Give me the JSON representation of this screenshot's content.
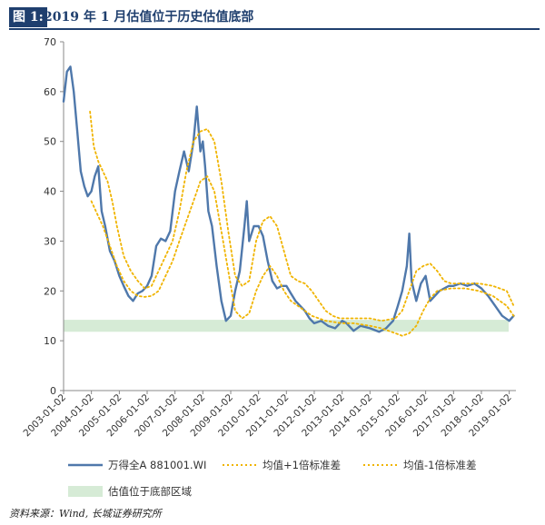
{
  "header": {
    "figure_label": "图 1:",
    "title": "2019 年 1 月估值位于历史估值底部"
  },
  "source": "资料来源：Wind, 长城证券研究所",
  "colors": {
    "series": "#4f78ab",
    "bands": "#f0b400",
    "zone": "#d6ebd6",
    "axis": "#888888",
    "title": "#1f3f6e"
  },
  "chart_data": {
    "type": "line",
    "title": "",
    "xlabel": "",
    "ylabel": "",
    "ylim": [
      0,
      70
    ],
    "y_ticks": [
      0,
      10,
      20,
      30,
      40,
      50,
      60,
      70
    ],
    "x_range": [
      "2003-01-02",
      "2019-03-31"
    ],
    "x_tick_labels": [
      "2003-01-02",
      "2004-01-02",
      "2005-01-02",
      "2006-01-02",
      "2007-01-02",
      "2008-01-02",
      "2009-01-02",
      "2010-01-02",
      "2011-01-02",
      "2012-01-02",
      "2013-01-02",
      "2014-01-02",
      "2015-01-02",
      "2016-01-02",
      "2017-01-02",
      "2018-01-02",
      "2019-01-02"
    ],
    "grid": false,
    "legend_position": "bottom",
    "bottom_zone": {
      "name": "估值位于底部区域",
      "y_range": [
        11.8,
        14.2
      ]
    },
    "series": [
      {
        "name": "万得全A 881001.WI",
        "style": "solid",
        "points": [
          [
            "2003-01-02",
            58
          ],
          [
            "2003-02-15",
            64
          ],
          [
            "2003-04-01",
            65
          ],
          [
            "2003-05-15",
            60
          ],
          [
            "2003-07-01",
            52
          ],
          [
            "2003-08-15",
            44
          ],
          [
            "2003-10-01",
            41
          ],
          [
            "2003-11-15",
            39
          ],
          [
            "2004-01-02",
            40
          ],
          [
            "2004-02-15",
            43
          ],
          [
            "2004-04-01",
            45
          ],
          [
            "2004-05-15",
            36
          ],
          [
            "2004-07-01",
            33
          ],
          [
            "2004-09-01",
            28
          ],
          [
            "2004-11-01",
            26
          ],
          [
            "2005-01-02",
            23
          ],
          [
            "2005-03-01",
            21
          ],
          [
            "2005-05-01",
            19
          ],
          [
            "2005-07-01",
            18
          ],
          [
            "2005-09-01",
            19.5
          ],
          [
            "2005-11-01",
            20
          ],
          [
            "2006-01-02",
            21
          ],
          [
            "2006-03-01",
            23
          ],
          [
            "2006-05-01",
            29
          ],
          [
            "2006-07-01",
            30.5
          ],
          [
            "2006-09-01",
            30
          ],
          [
            "2006-11-01",
            32
          ],
          [
            "2007-01-02",
            40
          ],
          [
            "2007-03-01",
            44
          ],
          [
            "2007-05-01",
            48
          ],
          [
            "2007-07-01",
            44
          ],
          [
            "2007-09-01",
            50
          ],
          [
            "2007-10-15",
            57
          ],
          [
            "2007-12-01",
            48
          ],
          [
            "2008-01-02",
            50
          ],
          [
            "2008-02-01",
            45
          ],
          [
            "2008-03-15",
            36
          ],
          [
            "2008-05-01",
            33
          ],
          [
            "2008-07-01",
            25
          ],
          [
            "2008-09-01",
            18
          ],
          [
            "2008-11-01",
            14
          ],
          [
            "2009-01-02",
            15
          ],
          [
            "2009-03-01",
            20
          ],
          [
            "2009-05-01",
            24
          ],
          [
            "2009-07-01",
            33
          ],
          [
            "2009-08-01",
            38
          ],
          [
            "2009-09-01",
            30
          ],
          [
            "2009-11-01",
            33
          ],
          [
            "2010-01-02",
            33
          ],
          [
            "2010-03-01",
            31
          ],
          [
            "2010-05-01",
            26
          ],
          [
            "2010-07-01",
            22
          ],
          [
            "2010-09-01",
            20.5
          ],
          [
            "2010-11-01",
            21
          ],
          [
            "2011-01-02",
            21
          ],
          [
            "2011-03-01",
            19.5
          ],
          [
            "2011-05-01",
            18
          ],
          [
            "2011-07-01",
            17
          ],
          [
            "2011-09-01",
            16
          ],
          [
            "2011-11-01",
            14.5
          ],
          [
            "2012-01-02",
            13.5
          ],
          [
            "2012-04-01",
            14
          ],
          [
            "2012-07-01",
            13
          ],
          [
            "2012-10-01",
            12.5
          ],
          [
            "2013-01-02",
            14
          ],
          [
            "2013-03-01",
            13.5
          ],
          [
            "2013-06-01",
            12
          ],
          [
            "2013-09-01",
            13
          ],
          [
            "2014-01-02",
            12.5
          ],
          [
            "2014-05-01",
            11.8
          ],
          [
            "2014-08-01",
            12.5
          ],
          [
            "2014-11-01",
            14
          ],
          [
            "2015-01-02",
            17
          ],
          [
            "2015-03-01",
            20
          ],
          [
            "2015-05-01",
            25
          ],
          [
            "2015-06-01",
            31.5
          ],
          [
            "2015-07-01",
            22
          ],
          [
            "2015-09-01",
            18
          ],
          [
            "2015-11-01",
            21.5
          ],
          [
            "2016-01-02",
            23
          ],
          [
            "2016-03-01",
            18
          ],
          [
            "2016-05-01",
            19
          ],
          [
            "2016-07-01",
            20
          ],
          [
            "2016-09-01",
            20.5
          ],
          [
            "2016-11-01",
            21
          ],
          [
            "2017-01-02",
            21
          ],
          [
            "2017-04-01",
            21.5
          ],
          [
            "2017-07-01",
            21
          ],
          [
            "2017-10-01",
            21.5
          ],
          [
            "2018-01-02",
            20.5
          ],
          [
            "2018-04-01",
            19
          ],
          [
            "2018-07-01",
            17
          ],
          [
            "2018-10-01",
            15
          ],
          [
            "2019-01-02",
            14
          ],
          [
            "2019-03-01",
            15
          ]
        ]
      },
      {
        "name": "均值+1倍标准差",
        "style": "dotted",
        "points": [
          [
            "2003-12-15",
            56
          ],
          [
            "2004-02-01",
            49
          ],
          [
            "2004-04-01",
            46
          ],
          [
            "2004-06-01",
            44
          ],
          [
            "2004-08-01",
            42
          ],
          [
            "2004-10-01",
            38
          ],
          [
            "2004-12-01",
            33
          ],
          [
            "2005-03-01",
            27
          ],
          [
            "2005-06-01",
            24
          ],
          [
            "2005-09-01",
            22
          ],
          [
            "2005-12-01",
            20.5
          ],
          [
            "2006-03-01",
            21
          ],
          [
            "2006-06-01",
            24
          ],
          [
            "2006-09-01",
            27
          ],
          [
            "2006-12-01",
            30
          ],
          [
            "2007-03-01",
            36
          ],
          [
            "2007-06-01",
            44
          ],
          [
            "2007-09-01",
            50
          ],
          [
            "2007-12-01",
            52
          ],
          [
            "2008-03-01",
            52.5
          ],
          [
            "2008-06-01",
            50
          ],
          [
            "2008-09-01",
            42
          ],
          [
            "2008-12-01",
            32
          ],
          [
            "2009-03-01",
            23
          ],
          [
            "2009-06-01",
            21
          ],
          [
            "2009-09-01",
            22
          ],
          [
            "2009-12-01",
            30
          ],
          [
            "2010-03-01",
            34
          ],
          [
            "2010-06-01",
            35
          ],
          [
            "2010-09-01",
            33
          ],
          [
            "2010-12-01",
            28
          ],
          [
            "2011-03-01",
            23
          ],
          [
            "2011-06-01",
            22
          ],
          [
            "2011-09-01",
            21.5
          ],
          [
            "2011-12-01",
            20
          ],
          [
            "2012-03-01",
            18
          ],
          [
            "2012-06-01",
            16
          ],
          [
            "2012-09-01",
            15
          ],
          [
            "2012-12-01",
            14.5
          ],
          [
            "2013-06-01",
            14.5
          ],
          [
            "2014-01-01",
            14.5
          ],
          [
            "2014-06-01",
            14
          ],
          [
            "2014-12-01",
            14.5
          ],
          [
            "2015-03-01",
            16
          ],
          [
            "2015-06-01",
            20
          ],
          [
            "2015-09-01",
            24
          ],
          [
            "2015-12-01",
            25
          ],
          [
            "2016-03-01",
            25.5
          ],
          [
            "2016-06-01",
            24
          ],
          [
            "2016-09-01",
            22
          ],
          [
            "2016-12-01",
            21.5
          ],
          [
            "2017-06-01",
            21.5
          ],
          [
            "2017-12-01",
            21.5
          ],
          [
            "2018-06-01",
            21
          ],
          [
            "2018-12-01",
            20
          ],
          [
            "2019-03-01",
            17
          ]
        ]
      },
      {
        "name": "均值-1倍标准差",
        "style": "dotted",
        "points": [
          [
            "2004-01-02",
            38
          ],
          [
            "2004-03-01",
            36
          ],
          [
            "2004-06-01",
            33
          ],
          [
            "2004-09-01",
            29
          ],
          [
            "2004-12-01",
            25
          ],
          [
            "2005-03-01",
            22
          ],
          [
            "2005-06-01",
            20
          ],
          [
            "2005-09-01",
            19
          ],
          [
            "2005-12-01",
            18.8
          ],
          [
            "2006-03-01",
            19
          ],
          [
            "2006-06-01",
            20
          ],
          [
            "2006-09-01",
            23
          ],
          [
            "2006-12-01",
            26
          ],
          [
            "2007-03-01",
            30
          ],
          [
            "2007-06-01",
            34
          ],
          [
            "2007-09-01",
            38
          ],
          [
            "2007-12-01",
            42
          ],
          [
            "2008-03-01",
            43
          ],
          [
            "2008-06-01",
            40
          ],
          [
            "2008-09-01",
            32
          ],
          [
            "2008-12-01",
            24
          ],
          [
            "2009-03-01",
            16
          ],
          [
            "2009-06-01",
            14.5
          ],
          [
            "2009-09-01",
            15.5
          ],
          [
            "2009-12-01",
            20
          ],
          [
            "2010-03-01",
            23
          ],
          [
            "2010-06-01",
            25
          ],
          [
            "2010-09-01",
            23
          ],
          [
            "2010-12-01",
            20
          ],
          [
            "2011-03-01",
            18
          ],
          [
            "2011-06-01",
            17
          ],
          [
            "2011-09-01",
            16
          ],
          [
            "2011-12-01",
            15
          ],
          [
            "2012-06-01",
            14
          ],
          [
            "2013-01-01",
            13.5
          ],
          [
            "2013-06-01",
            13.5
          ],
          [
            "2014-01-01",
            13
          ],
          [
            "2014-06-01",
            12.5
          ],
          [
            "2014-12-01",
            11.5
          ],
          [
            "2015-03-01",
            11
          ],
          [
            "2015-06-01",
            11.5
          ],
          [
            "2015-09-01",
            13
          ],
          [
            "2015-12-01",
            16
          ],
          [
            "2016-03-01",
            18.5
          ],
          [
            "2016-06-01",
            20
          ],
          [
            "2016-12-01",
            20.5
          ],
          [
            "2017-06-01",
            20.5
          ],
          [
            "2017-12-01",
            20
          ],
          [
            "2018-06-01",
            19
          ],
          [
            "2018-12-01",
            17
          ],
          [
            "2019-03-01",
            15
          ]
        ]
      }
    ]
  }
}
